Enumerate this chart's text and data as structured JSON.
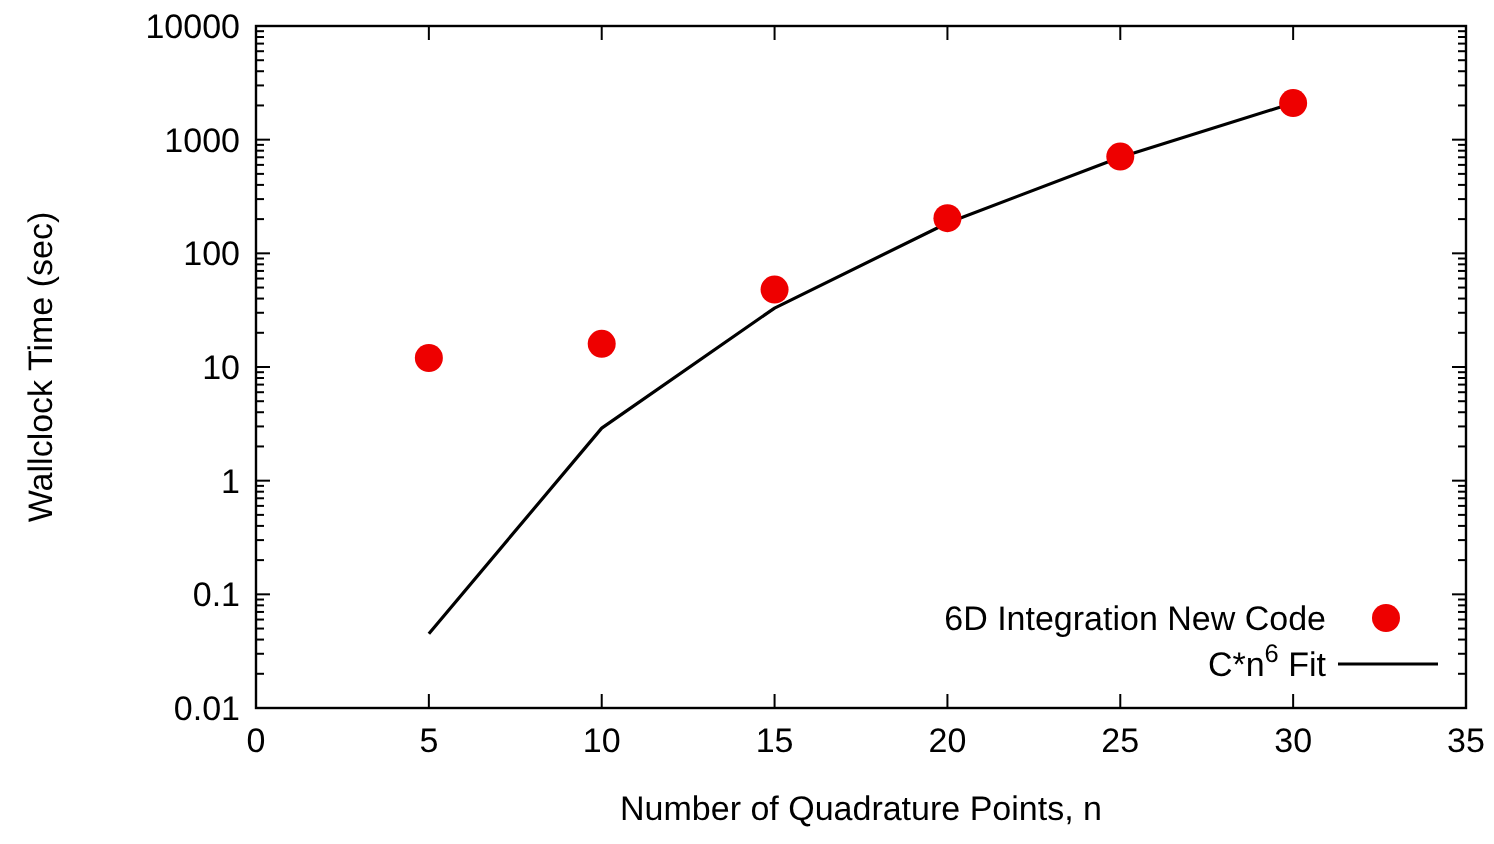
{
  "chart_data": {
    "type": "scatter",
    "xlabel": "Number of Quadrature Points, n",
    "ylabel": "Wallclock Time (sec)",
    "log": "y",
    "xlim": [
      0,
      35
    ],
    "xticks": [
      0,
      5,
      10,
      15,
      20,
      25,
      30,
      35
    ],
    "ylim": [
      0.01,
      10000
    ],
    "yticks": [
      0.01,
      0.1,
      1,
      10,
      100,
      1000,
      10000
    ],
    "grid": false,
    "legend": "bottom right",
    "x": [
      5,
      10,
      15,
      20,
      25,
      30
    ],
    "series": [
      {
        "name": "6D Integration New Code",
        "color": "#ee0000",
        "marker": "circle",
        "values": [
          12,
          16,
          48,
          204,
          710,
          2100
        ]
      },
      {
        "name": "C*n$^{6}$ Fit",
        "type": "line",
        "color": "#000000",
        "marker": "none",
        "line_style": "solid",
        "values": [
          0.045,
          2.9,
          33,
          185,
          700,
          2100
        ]
      }
    ]
  }
}
